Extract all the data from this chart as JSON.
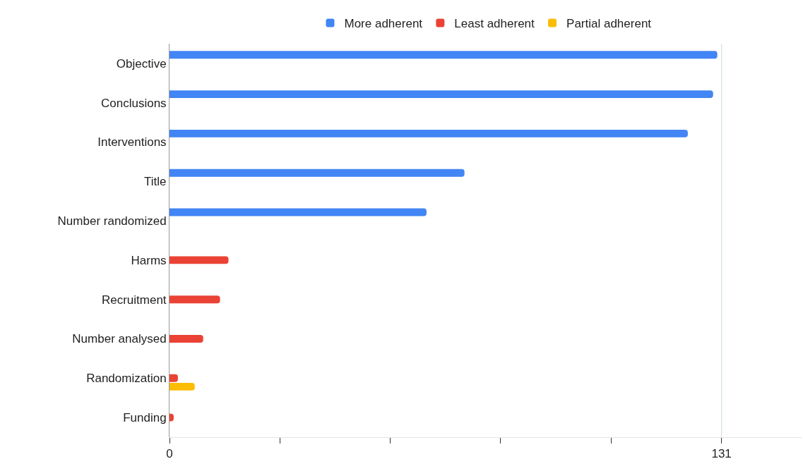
{
  "chart_data": {
    "type": "bar",
    "orientation": "horizontal",
    "categories": [
      "Objective",
      "Conclusions",
      "Interventions",
      "Title",
      "Number randomized",
      "Harms",
      "Recruitment",
      "Number analysed",
      "Randomization",
      "Funding"
    ],
    "series": [
      {
        "name": "More adherent",
        "color": "#4285f4",
        "values": [
          130,
          129,
          123,
          70,
          61,
          null,
          null,
          null,
          null,
          null
        ]
      },
      {
        "name": "Least adherent",
        "color": "#ea4335",
        "values": [
          null,
          null,
          null,
          null,
          null,
          14,
          12,
          8,
          2,
          1
        ]
      },
      {
        "name": "Partial adherent",
        "color": "#fbbc04",
        "values": [
          null,
          null,
          null,
          null,
          null,
          null,
          null,
          null,
          6,
          null
        ]
      }
    ],
    "xlim": [
      0,
      150
    ],
    "xticks": [
      0,
      {
        "value": 26.2,
        "label": null
      },
      {
        "value": 52.4,
        "label": null
      },
      {
        "value": 78.6,
        "label": null
      },
      {
        "value": 104.8,
        "label": null
      },
      131
    ],
    "ref_lines": [
      {
        "axis": "x",
        "value": 131,
        "color": "#d9e8d9"
      }
    ],
    "legend": "top",
    "grid": false
  }
}
